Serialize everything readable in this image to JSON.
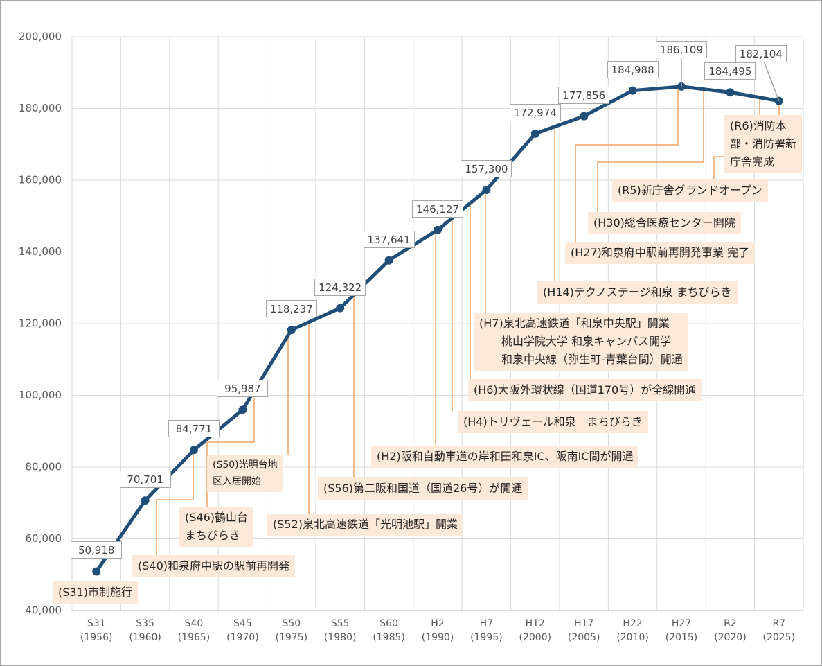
{
  "chart_data": {
    "type": "line",
    "categories": [
      "S31\n(1956)",
      "S35\n(1960)",
      "S40\n(1965)",
      "S45\n(1970)",
      "S50\n(1975)",
      "S55\n(1980)",
      "S60\n(1985)",
      "H2\n(1990)",
      "H7\n(1995)",
      "H12\n(2000)",
      "H17\n(2005)",
      "H22\n(2010)",
      "H27\n(2015)",
      "R2\n(2020)",
      "R7\n(2025)"
    ],
    "values": [
      50918,
      70701,
      84771,
      95987,
      118237,
      124322,
      137641,
      146127,
      157300,
      172974,
      177856,
      184988,
      186109,
      184495,
      182104
    ],
    "value_labels": [
      "50,918",
      "70,701",
      "84,771",
      "95,987",
      "118,237",
      "124,322",
      "137,641",
      "146,127",
      "157,300",
      "172,974",
      "177,856",
      "184,988",
      "186,109",
      "184,495",
      "182,104"
    ],
    "color": "#1f4e79",
    "ylim": [
      40000,
      200000
    ],
    "yticks": [
      {
        "value": 40000,
        "label": "40,000"
      },
      {
        "value": 60000,
        "label": "60,000"
      },
      {
        "value": 80000,
        "label": "80,000"
      },
      {
        "value": 100000,
        "label": "100,000"
      },
      {
        "value": 120000,
        "label": "120,000"
      },
      {
        "value": 140000,
        "label": "140,000"
      },
      {
        "value": 160000,
        "label": "160,000"
      },
      {
        "value": 180000,
        "label": "180,000"
      },
      {
        "value": 200000,
        "label": "200,000"
      }
    ],
    "grid": true,
    "annotations": [
      "(S31)市制施行",
      "(S40)和泉府中駅の駅前再開発",
      "(S46)鶴山台\nまちびらき",
      "(S50)光明台地\n区入居開始",
      "(S52)泉北高速鉄道「光明池駅」開業",
      "(S56)第二阪和国道（国道26号）が開通",
      "(H2)阪和自動車道の岸和田和泉IC、阪南IC間が開通",
      "(H4)トリヴェール和泉　まちびらき",
      "(H6)大阪外環状線（国道170号）が全線開通",
      "(H7)泉北高速鉄道「和泉中央駅」開業\n　　桃山学院大学 和泉キャンパス開学\n　　和泉中央線（弥生町-青葉台間）開通",
      "(H14)テクノステージ和泉 まちびらき",
      "(H27)和泉府中駅前再開発事業 完了",
      "(H30)総合医療センター開院",
      "(R5)新庁舎グランドオープン",
      "(R6)消防本\n部・消防署新\n庁舎完成"
    ]
  }
}
